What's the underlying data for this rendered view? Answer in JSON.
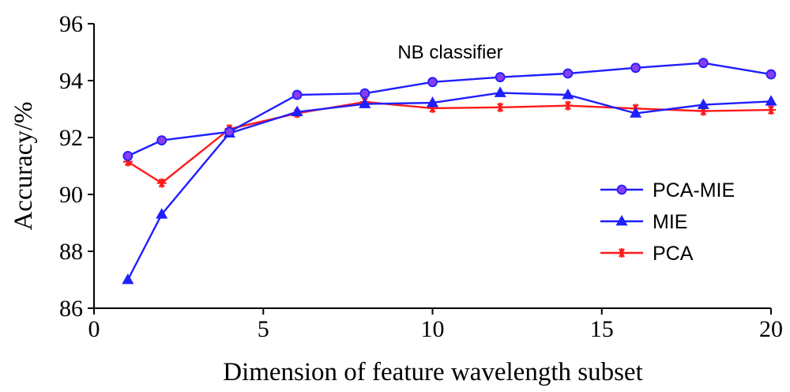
{
  "chart_data": {
    "type": "line",
    "title": "",
    "annotation": "NB  classifier",
    "xlabel": "Dimension of feature wavelength subset",
    "ylabel": "Accuracy/%",
    "xlim": [
      0,
      20
    ],
    "ylim": [
      86,
      96
    ],
    "xticks": [
      0,
      5,
      10,
      15,
      20
    ],
    "yticks": [
      86,
      88,
      90,
      92,
      94,
      96
    ],
    "grid": false,
    "legend_position": "right",
    "series": [
      {
        "name": "PCA-MIE",
        "marker": "circle",
        "color": "#1f1fff",
        "marker_fill": "#8a3cf0",
        "x": [
          1,
          2,
          4,
          6,
          8,
          10,
          12,
          14,
          16,
          18,
          20
        ],
        "y": [
          91.35,
          91.9,
          92.2,
          93.5,
          93.55,
          93.95,
          94.12,
          94.25,
          94.45,
          94.62,
          94.22
        ]
      },
      {
        "name": "MIE",
        "marker": "triangle",
        "color": "#1f1fff",
        "marker_fill": "#1f1fff",
        "x": [
          1,
          2,
          4,
          6,
          8,
          10,
          12,
          14,
          16,
          18,
          20
        ],
        "y": [
          87.0,
          89.3,
          92.15,
          92.9,
          93.18,
          93.22,
          93.57,
          93.5,
          92.85,
          93.15,
          93.27
        ]
      },
      {
        "name": "PCA",
        "marker": "star",
        "color": "#ff1a1a",
        "marker_fill": "#ff1a1a",
        "x": [
          1,
          2,
          4,
          6,
          8,
          10,
          12,
          14,
          16,
          18,
          20
        ],
        "y": [
          91.15,
          90.4,
          92.3,
          92.85,
          93.25,
          93.03,
          93.06,
          93.12,
          93.02,
          92.93,
          92.97
        ]
      }
    ]
  }
}
